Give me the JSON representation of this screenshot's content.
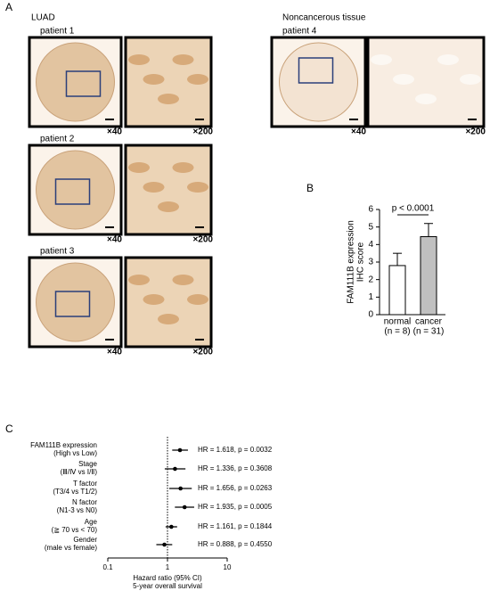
{
  "panel_a": {
    "label": "A",
    "group_labels": [
      "LUAD",
      "Noncancerous tissue"
    ],
    "patients": [
      "patient 1",
      "patient 2",
      "patient 3",
      "patient 4"
    ],
    "magnifications": [
      "×40",
      "×200"
    ]
  },
  "chart_data": [
    {
      "type": "bar",
      "panel_label": "B",
      "ylabel": [
        "FAM111B expression",
        "IHC score"
      ],
      "categories": [
        "normal",
        "cancer"
      ],
      "category_sublabels": [
        "(n = 8)",
        "(n = 31)"
      ],
      "values": [
        2.8,
        4.45
      ],
      "errors": [
        0.7,
        0.75
      ],
      "colors": [
        "#ffffff",
        "#c0c0c0"
      ],
      "ylim": [
        0,
        6
      ],
      "yticks": [
        0,
        1,
        2,
        3,
        4,
        5,
        6
      ],
      "annotation": "p < 0.0001"
    },
    {
      "type": "forest",
      "panel_label": "C",
      "categories": [
        "FAM111B expression",
        "Stage",
        "T factor",
        "N factor",
        "Age",
        "Gender"
      ],
      "category_sublabels": [
        "(High vs Low)",
        "(Ⅲ/Ⅳ vs Ⅰ/Ⅱ)",
        "(T3/4 vs T1/2)",
        "(N1-3 vs N0)",
        "(≧ 70 vs < 70)",
        "(male vs female)"
      ],
      "values": [
        1.618,
        1.336,
        1.656,
        1.935,
        1.161,
        0.888
      ],
      "ci_low": [
        1.2,
        0.9,
        1.07,
        1.33,
        0.93,
        0.65
      ],
      "ci_high": [
        2.2,
        2.0,
        2.55,
        2.8,
        1.45,
        1.2
      ],
      "value_labels": [
        "HR = 1.618, p = 0.0032",
        "HR = 1.336, p = 0.3608",
        "HR = 1.656, p = 0.0263",
        "HR = 1.935, p = 0.0005",
        "HR = 1.161, p = 0.1844",
        "HR = 0.888, p = 0.4550"
      ],
      "log_x": true,
      "xlim": [
        0.1,
        10
      ],
      "xticks": [
        0.1,
        1,
        10
      ],
      "reference": 1,
      "xlabel": [
        "Hazard ratio (95% CI)",
        "5-year overall survival"
      ]
    }
  ]
}
